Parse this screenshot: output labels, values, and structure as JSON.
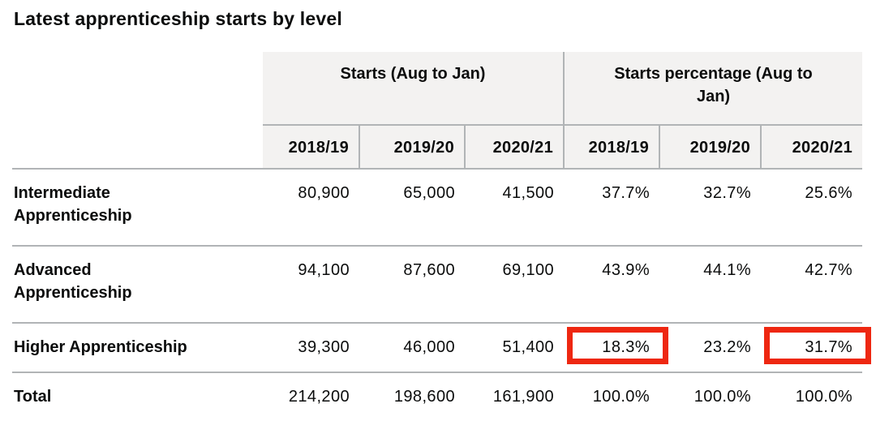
{
  "title": "Latest apprenticeship starts by level",
  "table": {
    "column_groups": [
      {
        "label_lines": [
          "Starts (Aug to Jan)"
        ]
      },
      {
        "label_lines": [
          "Starts percentage (Aug to",
          "Jan)"
        ]
      }
    ],
    "years": [
      "2018/19",
      "2019/20",
      "2020/21"
    ],
    "rows": [
      {
        "label_lines": [
          "Intermediate",
          "Apprenticeship"
        ],
        "starts": [
          "80,900",
          "65,000",
          "41,500"
        ],
        "percentages": [
          "37.7%",
          "32.7%",
          "25.6%"
        ]
      },
      {
        "label_lines": [
          "Advanced",
          "Apprenticeship"
        ],
        "starts": [
          "94,100",
          "87,600",
          "69,100"
        ],
        "percentages": [
          "43.9%",
          "44.1%",
          "42.7%"
        ]
      },
      {
        "label_lines": [
          "Higher Apprenticeship"
        ],
        "starts": [
          "39,300",
          "46,000",
          "51,400"
        ],
        "percentages": [
          "18.3%",
          "23.2%",
          "31.7%"
        ],
        "highlighted_percentage_columns": [
          "2018/19",
          "2020/21"
        ]
      },
      {
        "label_lines": [
          "Total"
        ],
        "starts": [
          "214,200",
          "198,600",
          "161,900"
        ],
        "percentages": [
          "100.0%",
          "100.0%",
          "100.0%"
        ]
      }
    ]
  },
  "chart_data": {
    "type": "table",
    "title": "Latest apprenticeship starts by level",
    "column_groups": [
      "Starts (Aug to Jan)",
      "Starts percentage (Aug to Jan)"
    ],
    "columns": [
      "2018/19",
      "2019/20",
      "2020/21",
      "2018/19",
      "2019/20",
      "2020/21"
    ],
    "rows": [
      {
        "label": "Intermediate Apprenticeship",
        "starts": [
          80900,
          65000,
          41500
        ],
        "starts_percentage": [
          37.7,
          32.7,
          25.6
        ]
      },
      {
        "label": "Advanced Apprenticeship",
        "starts": [
          94100,
          87600,
          69100
        ],
        "starts_percentage": [
          43.9,
          44.1,
          42.7
        ]
      },
      {
        "label": "Higher Apprenticeship",
        "starts": [
          39300,
          46000,
          51400
        ],
        "starts_percentage": [
          18.3,
          23.2,
          31.7
        ]
      },
      {
        "label": "Total",
        "starts": [
          214200,
          198600,
          161900
        ],
        "starts_percentage": [
          100.0,
          100.0,
          100.0
        ]
      }
    ],
    "annotations": [
      "Red box around Higher Apprenticeship 2018/19 starts percentage (18.3%)",
      "Red box around Higher Apprenticeship 2020/21 starts percentage (31.7%)"
    ]
  },
  "colors": {
    "text": "#0b0c0c",
    "header_background": "#f3f2f1",
    "border": "#b1b4b6",
    "highlight_border": "#ee2711"
  }
}
